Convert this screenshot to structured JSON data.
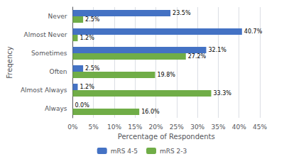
{
  "chart_data": {
    "type": "bar",
    "orientation": "horizontal",
    "categories": [
      "Always",
      "Almost Always",
      "Often",
      "Sometimes",
      "Almost Never",
      "Never"
    ],
    "series": [
      {
        "name": "mRS 4-5",
        "color": "#4472C4",
        "values": [
          0.0,
          1.2,
          2.5,
          32.1,
          40.7,
          23.5
        ],
        "value_labels": [
          "0.0%",
          "1.2%",
          "2.5%",
          "32.1%",
          "40.7%",
          "23.5%"
        ]
      },
      {
        "name": "mRS 2-3",
        "color": "#70AD47",
        "values": [
          16.0,
          33.3,
          19.8,
          27.2,
          1.2,
          2.5
        ],
        "value_labels": [
          "16.0%",
          "33.3%",
          "19.8%",
          "27.2%",
          "1.2%",
          "2.5%"
        ]
      }
    ],
    "xlabel": "Percentage of Respondents",
    "ylabel": "Freqency",
    "xlim": [
      0,
      45
    ],
    "xticks": [
      {
        "value": 0,
        "label": "0%"
      },
      {
        "value": 5,
        "label": "5%"
      },
      {
        "value": 10,
        "label": "10%"
      },
      {
        "value": 15,
        "label": "15%"
      },
      {
        "value": 20,
        "label": "20%"
      },
      {
        "value": 25,
        "label": "25%"
      },
      {
        "value": 30,
        "label": "30%"
      },
      {
        "value": 35,
        "label": "35%"
      },
      {
        "value": 40,
        "label": "40%"
      },
      {
        "value": 45,
        "label": "45%"
      }
    ],
    "grid": true,
    "legend": "bottom",
    "data_labels": true
  }
}
